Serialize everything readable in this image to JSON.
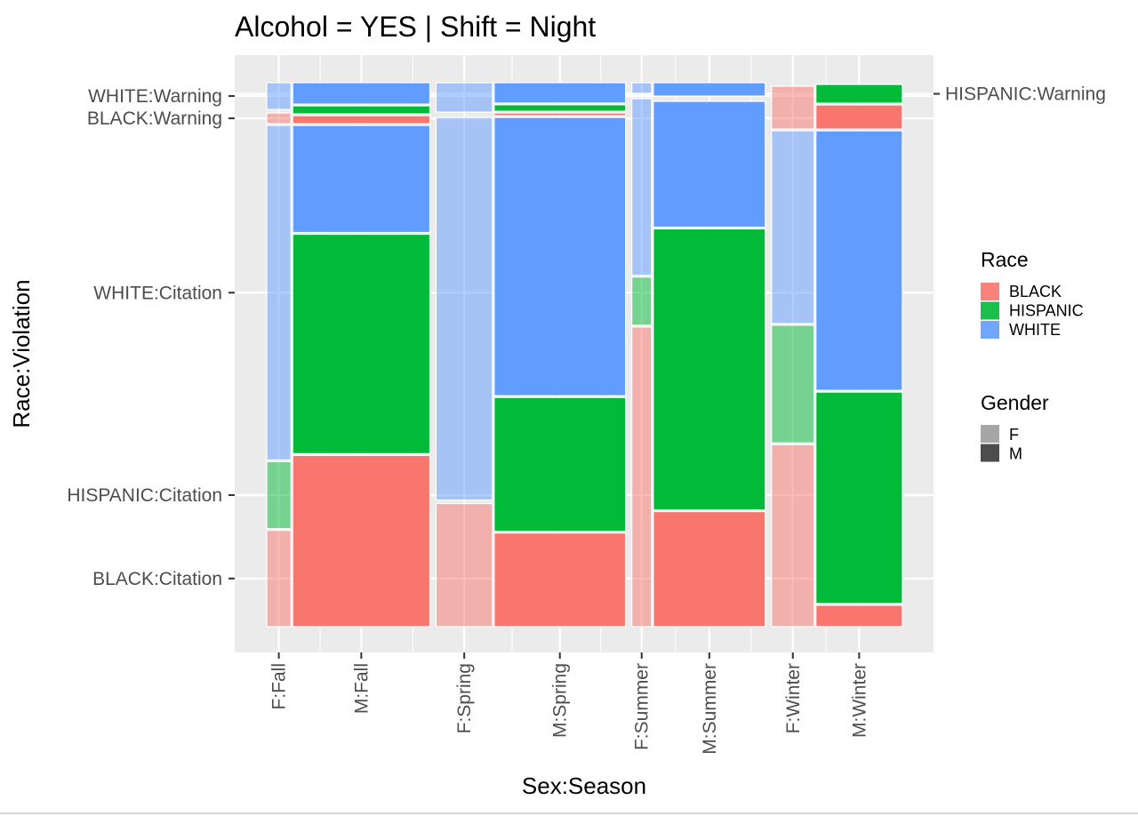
{
  "chart_data": {
    "type": "mosaic",
    "title": "Alcohol = YES | Shift = Night",
    "xlabel": "Sex:Season",
    "ylabel": "Race:Violation",
    "x_tick_labels": [
      "F:Fall",
      "M:Fall",
      "F:Spring",
      "M:Spring",
      "F:Summer",
      "M:Summer",
      "F:Winter",
      "M:Winter"
    ],
    "y_tick_labels": [
      "BLACK:Citation",
      "HISPANIC:Citation",
      "WHITE:Citation",
      "BLACK:Warning",
      "WHITE:Warning"
    ],
    "y_tick_labels_right": [
      "HISPANIC:Warning"
    ],
    "legend": [
      {
        "title": "Race",
        "entries": [
          {
            "label": "BLACK",
            "color": "#F8766D"
          },
          {
            "label": "HISPANIC",
            "color": "#00BA38"
          },
          {
            "label": "WHITE",
            "color": "#619CFF"
          }
        ]
      },
      {
        "title": "Gender",
        "entries": [
          {
            "label": "F",
            "color": "#A6A6A6"
          },
          {
            "label": "M",
            "color": "#4D4D4D"
          }
        ]
      }
    ],
    "legend_position": "right",
    "grid": true,
    "season_order": [
      "Fall",
      "Spring",
      "Summer",
      "Winter"
    ],
    "sex_order": [
      "F",
      "M"
    ],
    "stack_order": [
      "BLACK:Citation",
      "HISPANIC:Citation",
      "WHITE:Citation",
      "BLACK:Warning",
      "HISPANIC:Warning",
      "WHITE:Warning"
    ],
    "season_widths": [
      0.245,
      0.285,
      0.2,
      0.196
    ],
    "sex_share_within_season": {
      "Fall": [
        0.15,
        0.85
      ],
      "Spring": [
        0.3,
        0.7
      ],
      "Summer": [
        0.15,
        0.85
      ],
      "Winter": [
        0.33,
        0.67
      ]
    },
    "cell_proportions": {
      "F:Fall": [
        0.18,
        0.125,
        0.625,
        0.02,
        0.0,
        0.05
      ],
      "M:Fall": [
        0.32,
        0.41,
        0.2,
        0.015,
        0.015,
        0.04
      ],
      "F:Spring": [
        0.23,
        0.0,
        0.715,
        0.0,
        0.0,
        0.055
      ],
      "M:Spring": [
        0.175,
        0.25,
        0.52,
        0.005,
        0.012,
        0.038
      ],
      "F:Summer": [
        0.56,
        0.09,
        0.33,
        0.0,
        0.0,
        0.02
      ],
      "M:Summer": [
        0.215,
        0.525,
        0.235,
        0.0,
        0.0,
        0.025
      ],
      "F:Winter": [
        0.34,
        0.22,
        0.36,
        0.08,
        0.0,
        0.0
      ],
      "M:Winter": [
        0.04,
        0.395,
        0.485,
        0.045,
        0.035,
        0.0
      ]
    }
  }
}
